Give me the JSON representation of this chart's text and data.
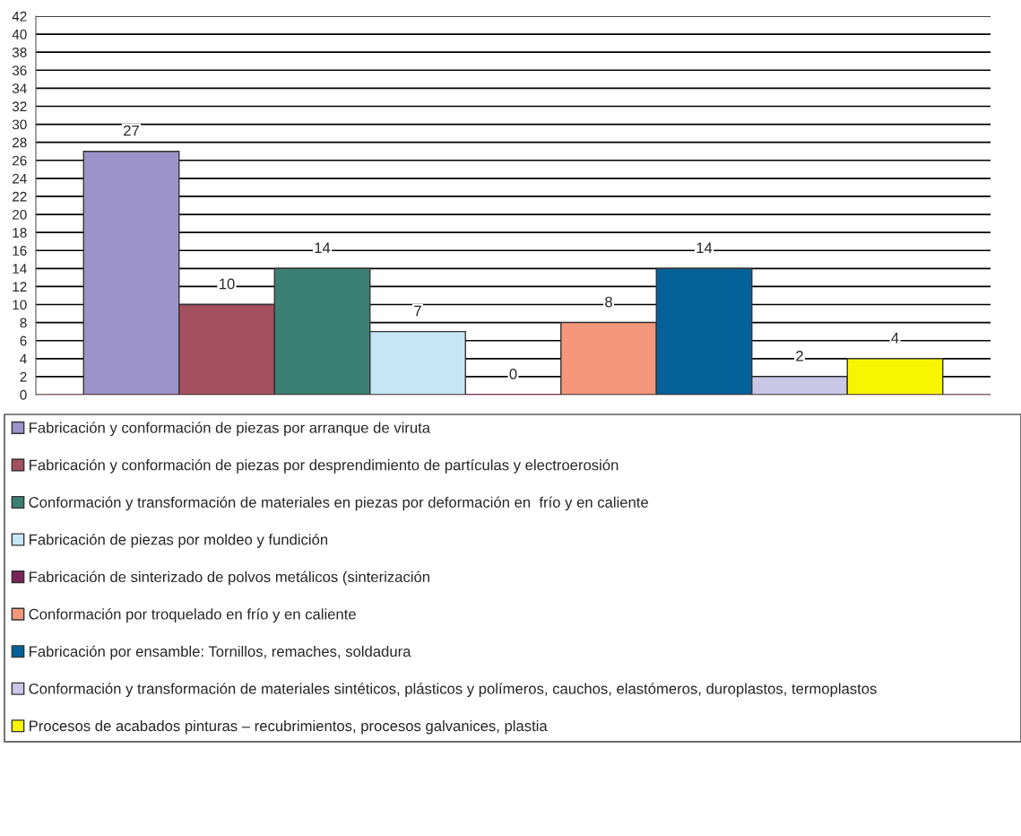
{
  "chart_data": {
    "type": "bar",
    "categories": [
      null
    ],
    "series": [
      {
        "name": "Fabricación y conformación de piezas por arranque de viruta",
        "color": "#9b93c9",
        "values": [
          27
        ]
      },
      {
        "name": "Fabricación y conformación de piezas por desprendimiento de partículas y electroerosión",
        "color": "#a5505e",
        "values": [
          10
        ]
      },
      {
        "name": "Conformación y transformación de materiales en piezas por deformación en  frío y en caliente",
        "color": "#3c7f73",
        "values": [
          14
        ]
      },
      {
        "name": "Fabricación de piezas por moldeo y fundición",
        "color": "#c6e6f5",
        "values": [
          7
        ]
      },
      {
        "name": "Fabricación de sinterizado de polvos metálicos (sinterización",
        "color": "#7b2457",
        "values": [
          0
        ]
      },
      {
        "name": "Conformación por troquelado en frío y en caliente",
        "color": "#f4977a",
        "values": [
          8
        ]
      },
      {
        "name": "Fabricación por ensamble: Tornillos, remaches, soldadura",
        "color": "#04619a",
        "values": [
          14
        ]
      },
      {
        "name": "Conformación y transformación de materiales sintéticos, plásticos y polímeros, cauchos, elastómeros, duroplastos, termoplastos",
        "color": "#c9c6e6",
        "values": [
          2
        ]
      },
      {
        "name": "Procesos de acabados pinturas – recubrimientos, procesos galvanices, plastia",
        "color": "#f7f500",
        "values": [
          4
        ]
      }
    ],
    "ylim": [
      0,
      42
    ],
    "yticks": [
      0,
      2,
      4,
      6,
      8,
      10,
      12,
      14,
      16,
      18,
      20,
      22,
      24,
      26,
      28,
      30,
      32,
      34,
      36,
      38,
      40,
      42
    ],
    "grid": "y",
    "legend": "bottom",
    "data_labels": true
  }
}
